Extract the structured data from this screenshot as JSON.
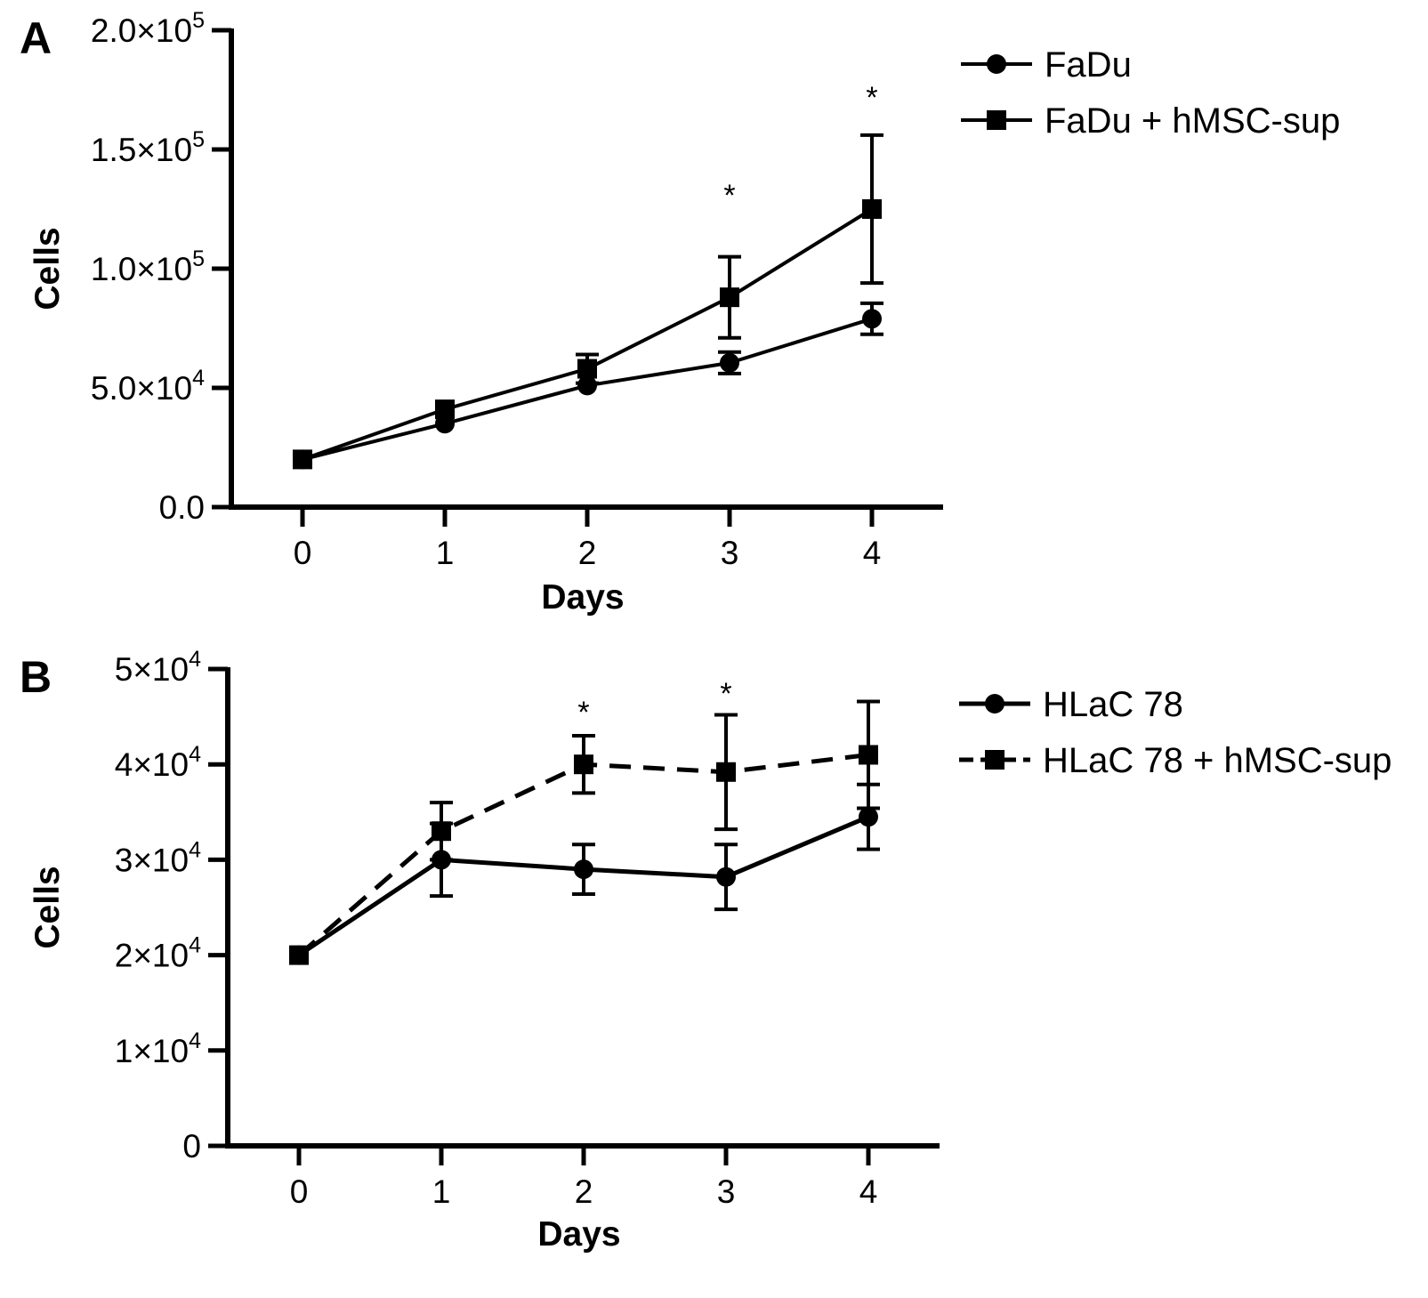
{
  "chart_data": [
    {
      "type": "line",
      "panel_label": "A",
      "xlabel": "Days",
      "ylabel": "Cells",
      "x": [
        0,
        1,
        2,
        3,
        4
      ],
      "xlim": [
        -0.5,
        4.5
      ],
      "ylim": [
        0,
        200000
      ],
      "yticks": [
        {
          "value": 0,
          "mant": "0.0",
          "exp": ""
        },
        {
          "value": 50000,
          "mant": "5.0×10",
          "exp": "4"
        },
        {
          "value": 100000,
          "mant": "1.0×10",
          "exp": "5"
        },
        {
          "value": 150000,
          "mant": "1.5×10",
          "exp": "5"
        },
        {
          "value": 200000,
          "mant": "2.0×10",
          "exp": "5"
        }
      ],
      "grid": false,
      "legend_position": "top-right",
      "series": [
        {
          "name": "FaDu",
          "marker": "circle",
          "dash": "solid",
          "values": [
            20000,
            35000,
            51000,
            60500,
            79000
          ],
          "error": [
            0,
            0,
            0,
            4500,
            6500
          ]
        },
        {
          "name": "FaDu + hMSC-sup",
          "marker": "square",
          "dash": "solid",
          "values": [
            20000,
            41000,
            58000,
            88000,
            125000
          ],
          "error": [
            0,
            0,
            6000,
            17000,
            31000
          ]
        }
      ],
      "annotations": [
        {
          "text": "*",
          "x": 3,
          "y": 131000
        },
        {
          "text": "*",
          "x": 4,
          "y": 172000
        }
      ]
    },
    {
      "type": "line",
      "panel_label": "B",
      "xlabel": "Days",
      "ylabel": "Cells",
      "x": [
        0,
        1,
        2,
        3,
        4
      ],
      "xlim": [
        -0.5,
        4.5
      ],
      "ylim": [
        0,
        50000
      ],
      "yticks": [
        {
          "value": 0,
          "mant": "0",
          "exp": ""
        },
        {
          "value": 10000,
          "mant": "1×10",
          "exp": "4"
        },
        {
          "value": 20000,
          "mant": "2×10",
          "exp": "4"
        },
        {
          "value": 30000,
          "mant": "3×10",
          "exp": "4"
        },
        {
          "value": 40000,
          "mant": "4×10",
          "exp": "4"
        },
        {
          "value": 50000,
          "mant": "5×10",
          "exp": "4"
        }
      ],
      "grid": false,
      "legend_position": "top-right",
      "series": [
        {
          "name": "HLaC 78",
          "marker": "circle",
          "dash": "solid",
          "values": [
            20000,
            30000,
            29000,
            28200,
            34500
          ],
          "error": [
            0,
            3800,
            2600,
            3400,
            3400
          ]
        },
        {
          "name": "HLaC 78 + hMSC-sup",
          "marker": "square",
          "dash": "dashed",
          "values": [
            20000,
            33000,
            40000,
            39200,
            41000
          ],
          "error": [
            0,
            3000,
            3000,
            6000,
            5600
          ]
        }
      ],
      "annotations": [
        {
          "text": "*",
          "x": 2,
          "y": 45500
        },
        {
          "text": "*",
          "x": 3,
          "y": 47500
        }
      ]
    }
  ]
}
